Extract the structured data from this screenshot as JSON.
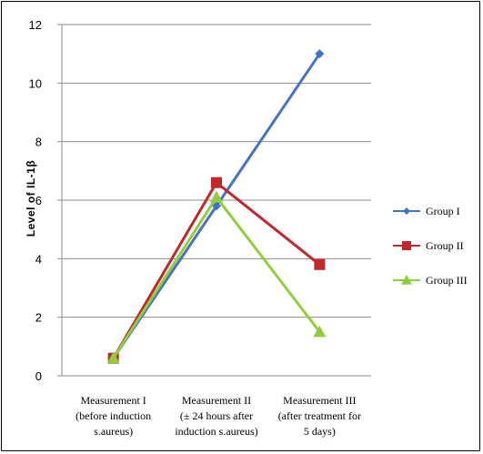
{
  "chart_data": {
    "type": "line",
    "ylabel": "Level  of  IL-1β",
    "ylim": [
      0,
      12
    ],
    "yticks": [
      "0",
      "2",
      "4",
      "6",
      "8",
      "10",
      "12"
    ],
    "grid": true,
    "legend_position": "right",
    "categories": [
      [
        "Measurement I",
        "(before induction",
        "s.aureus)"
      ],
      [
        "Measurement II",
        "(± 24 hours after",
        "induction s.aureus)"
      ],
      [
        "Measurement III",
        "(after treatment for",
        "5 days)"
      ]
    ],
    "series": [
      {
        "name": "Group I",
        "values": [
          0.6,
          5.8,
          11.0
        ],
        "color": "#4472C4",
        "marker": "diamond"
      },
      {
        "name": "Group II",
        "values": [
          0.6,
          6.6,
          3.8
        ],
        "color": "#C0282D",
        "marker": "square"
      },
      {
        "name": "Group III",
        "values": [
          0.6,
          6.1,
          1.5
        ],
        "color": "#8FCF3C",
        "marker": "triangle"
      }
    ]
  }
}
